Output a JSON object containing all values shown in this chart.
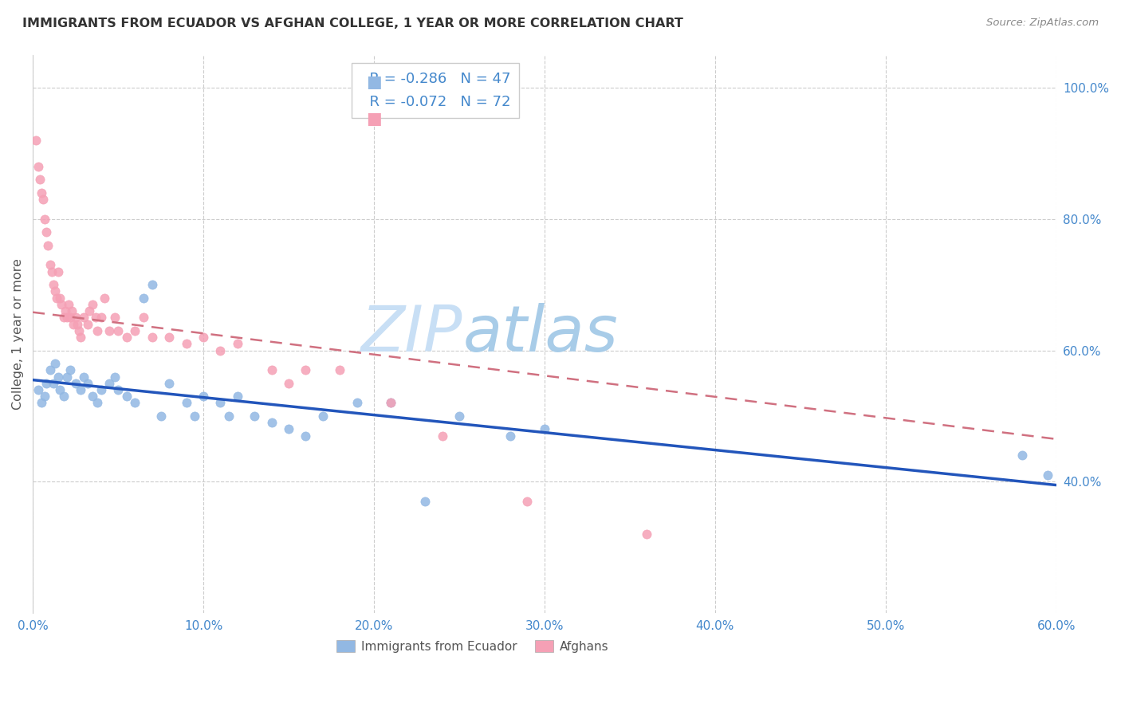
{
  "title": "IMMIGRANTS FROM ECUADOR VS AFGHAN COLLEGE, 1 YEAR OR MORE CORRELATION CHART",
  "source": "Source: ZipAtlas.com",
  "ylabel": "College, 1 year or more",
  "x_tick_labels": [
    "0.0%",
    "",
    "10.0%",
    "",
    "20.0%",
    "",
    "30.0%",
    "",
    "40.0%",
    "",
    "50.0%",
    "",
    "60.0%"
  ],
  "x_tick_vals": [
    0.0,
    0.05,
    0.1,
    0.15,
    0.2,
    0.25,
    0.3,
    0.35,
    0.4,
    0.45,
    0.5,
    0.55,
    0.6
  ],
  "y_tick_labels": [
    "40.0%",
    "60.0%",
    "80.0%",
    "100.0%"
  ],
  "y_tick_vals": [
    0.4,
    0.6,
    0.8,
    1.0
  ],
  "xlim": [
    0.0,
    0.6
  ],
  "ylim": [
    0.2,
    1.05
  ],
  "legend_label1": "Immigrants from Ecuador",
  "legend_label2": "Afghans",
  "R1": -0.286,
  "N1": 47,
  "R2": -0.072,
  "N2": 72,
  "color1": "#92b8e3",
  "color2": "#f5a0b5",
  "line_color1": "#2255bb",
  "line_color2": "#d07080",
  "watermark_zip": "ZIP",
  "watermark_atlas": "atlas",
  "watermark_color_zip": "#c8dff5",
  "watermark_color_atlas": "#a8cce8",
  "scatter1_x": [
    0.003,
    0.005,
    0.007,
    0.008,
    0.01,
    0.012,
    0.013,
    0.015,
    0.016,
    0.018,
    0.02,
    0.022,
    0.025,
    0.028,
    0.03,
    0.032,
    0.035,
    0.038,
    0.04,
    0.045,
    0.048,
    0.05,
    0.055,
    0.06,
    0.065,
    0.07,
    0.075,
    0.08,
    0.09,
    0.095,
    0.1,
    0.11,
    0.115,
    0.12,
    0.13,
    0.14,
    0.15,
    0.16,
    0.17,
    0.19,
    0.21,
    0.23,
    0.25,
    0.28,
    0.3,
    0.58,
    0.595
  ],
  "scatter1_y": [
    0.54,
    0.52,
    0.53,
    0.55,
    0.57,
    0.55,
    0.58,
    0.56,
    0.54,
    0.53,
    0.56,
    0.57,
    0.55,
    0.54,
    0.56,
    0.55,
    0.53,
    0.52,
    0.54,
    0.55,
    0.56,
    0.54,
    0.53,
    0.52,
    0.68,
    0.7,
    0.5,
    0.55,
    0.52,
    0.5,
    0.53,
    0.52,
    0.5,
    0.53,
    0.5,
    0.49,
    0.48,
    0.47,
    0.5,
    0.52,
    0.52,
    0.37,
    0.5,
    0.47,
    0.48,
    0.44,
    0.41
  ],
  "scatter2_x": [
    0.002,
    0.003,
    0.004,
    0.005,
    0.006,
    0.007,
    0.008,
    0.009,
    0.01,
    0.011,
    0.012,
    0.013,
    0.014,
    0.015,
    0.016,
    0.017,
    0.018,
    0.019,
    0.02,
    0.021,
    0.022,
    0.023,
    0.024,
    0.025,
    0.026,
    0.027,
    0.028,
    0.03,
    0.032,
    0.033,
    0.035,
    0.037,
    0.038,
    0.04,
    0.042,
    0.045,
    0.048,
    0.05,
    0.055,
    0.06,
    0.065,
    0.07,
    0.08,
    0.09,
    0.1,
    0.11,
    0.12,
    0.14,
    0.15,
    0.16,
    0.18,
    0.21,
    0.24,
    0.29,
    0.36
  ],
  "scatter2_y": [
    0.92,
    0.88,
    0.86,
    0.84,
    0.83,
    0.8,
    0.78,
    0.76,
    0.73,
    0.72,
    0.7,
    0.69,
    0.68,
    0.72,
    0.68,
    0.67,
    0.65,
    0.66,
    0.65,
    0.67,
    0.65,
    0.66,
    0.64,
    0.65,
    0.64,
    0.63,
    0.62,
    0.65,
    0.64,
    0.66,
    0.67,
    0.65,
    0.63,
    0.65,
    0.68,
    0.63,
    0.65,
    0.63,
    0.62,
    0.63,
    0.65,
    0.62,
    0.62,
    0.61,
    0.62,
    0.6,
    0.61,
    0.57,
    0.55,
    0.57,
    0.57,
    0.52,
    0.47,
    0.37,
    0.32
  ],
  "trendline1_x0": 0.0,
  "trendline1_y0": 0.555,
  "trendline1_x1": 0.6,
  "trendline1_y1": 0.395,
  "trendline2_x0": 0.0,
  "trendline2_y0": 0.658,
  "trendline2_x1": 0.6,
  "trendline2_y1": 0.465
}
